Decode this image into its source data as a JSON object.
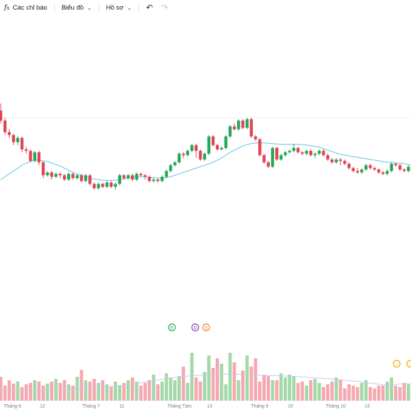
{
  "toolbar": {
    "indicators_label": "Các chỉ báo",
    "chart_label": "Biểu đồ",
    "profile_label": "Hồ sơ",
    "undo_icon": "undo-icon",
    "redo_icon": "redo-icon"
  },
  "colors": {
    "up": "#26a65b",
    "down": "#e04554",
    "ma": "#5ec1e0",
    "vol_up": "#a4d8a8",
    "vol_down": "#f5a8b0",
    "vol_ma": "#c5c8ea"
  },
  "chart_data": {
    "type": "candlestick",
    "x_ticks": [
      "Tháng 6",
      "12",
      "Tháng 7",
      "11",
      "Tháng Tám",
      "13",
      "Tháng 9",
      "15",
      "Tháng 10",
      "13"
    ],
    "ylim": [
      0,
      100
    ],
    "reference_line": 81,
    "events": [
      {
        "label": "E",
        "color": "#26a65b"
      },
      {
        "label": "D",
        "color": "#8e44ad"
      },
      {
        "label": "S",
        "color": "#f08030"
      }
    ],
    "candles": [
      [
        86,
        79,
        91,
        77
      ],
      [
        79,
        71,
        81,
        69
      ],
      [
        71,
        69,
        73,
        67
      ],
      [
        69,
        64,
        70,
        62
      ],
      [
        64,
        67,
        68,
        62
      ],
      [
        67,
        59,
        68,
        57
      ],
      [
        59,
        58,
        61,
        56
      ],
      [
        58,
        51,
        59,
        50
      ],
      [
        51,
        57,
        58,
        50
      ],
      [
        57,
        50,
        58,
        48
      ],
      [
        50,
        41,
        51,
        39
      ],
      [
        41,
        43,
        44,
        40
      ],
      [
        43,
        40,
        44,
        38
      ],
      [
        40,
        42,
        43,
        39
      ],
      [
        42,
        41,
        43,
        39
      ],
      [
        41,
        38,
        42,
        37
      ],
      [
        38,
        42,
        43,
        37
      ],
      [
        42,
        39,
        43,
        38
      ],
      [
        39,
        41,
        42,
        38
      ],
      [
        41,
        37,
        42,
        36
      ],
      [
        37,
        41,
        42,
        36
      ],
      [
        41,
        35,
        42,
        34
      ],
      [
        35,
        32,
        36,
        31
      ],
      [
        32,
        35,
        36,
        31
      ],
      [
        35,
        33,
        36,
        32
      ],
      [
        33,
        36,
        37,
        32
      ],
      [
        36,
        33,
        37,
        32
      ],
      [
        33,
        35,
        36,
        31
      ],
      [
        35,
        41,
        42,
        34
      ],
      [
        41,
        39,
        42,
        38
      ],
      [
        39,
        41,
        42,
        38
      ],
      [
        41,
        38,
        42,
        37
      ],
      [
        38,
        42,
        43,
        37
      ],
      [
        42,
        41,
        43,
        40
      ],
      [
        41,
        40,
        42,
        38
      ],
      [
        40,
        37,
        41,
        36
      ],
      [
        37,
        38,
        39,
        36
      ],
      [
        38,
        37,
        39,
        36
      ],
      [
        37,
        40,
        41,
        36
      ],
      [
        40,
        44,
        45,
        39
      ],
      [
        44,
        48,
        49,
        43
      ],
      [
        48,
        50,
        51,
        47
      ],
      [
        50,
        56,
        57,
        49
      ],
      [
        56,
        55,
        57,
        53
      ],
      [
        55,
        58,
        59,
        54
      ],
      [
        58,
        62,
        63,
        57
      ],
      [
        62,
        58,
        63,
        53
      ],
      [
        58,
        52,
        59,
        51
      ],
      [
        52,
        56,
        57,
        51
      ],
      [
        56,
        68,
        69,
        55
      ],
      [
        68,
        62,
        69,
        61
      ],
      [
        62,
        59,
        63,
        58
      ],
      [
        59,
        60,
        61,
        58
      ],
      [
        60,
        68,
        69,
        59
      ],
      [
        68,
        75,
        76,
        67
      ],
      [
        75,
        73,
        77,
        72
      ],
      [
        73,
        79,
        80,
        72
      ],
      [
        79,
        74,
        80,
        73
      ],
      [
        74,
        80,
        81,
        73
      ],
      [
        80,
        68,
        81,
        67
      ],
      [
        68,
        66,
        69,
        65
      ],
      [
        66,
        55,
        67,
        54
      ],
      [
        55,
        50,
        56,
        49
      ],
      [
        50,
        47,
        51,
        46
      ],
      [
        47,
        60,
        61,
        46
      ],
      [
        60,
        52,
        61,
        51
      ],
      [
        52,
        55,
        56,
        51
      ],
      [
        55,
        57,
        58,
        54
      ],
      [
        57,
        58,
        59,
        56
      ],
      [
        58,
        60,
        63,
        57
      ],
      [
        60,
        57,
        61,
        56
      ],
      [
        57,
        56,
        58,
        55
      ],
      [
        56,
        58,
        59,
        55
      ],
      [
        58,
        55,
        59,
        54
      ],
      [
        55,
        56,
        57,
        53
      ],
      [
        56,
        58,
        59,
        55
      ],
      [
        58,
        55,
        59,
        54
      ],
      [
        55,
        52,
        56,
        51
      ],
      [
        52,
        50,
        53,
        49
      ],
      [
        50,
        52,
        53,
        49
      ],
      [
        52,
        51,
        53,
        48
      ],
      [
        51,
        49,
        52,
        48
      ],
      [
        49,
        46,
        50,
        45
      ],
      [
        46,
        44,
        47,
        43
      ],
      [
        44,
        43,
        46,
        42
      ],
      [
        43,
        45,
        46,
        42
      ],
      [
        45,
        48,
        49,
        44
      ],
      [
        48,
        46,
        49,
        45
      ],
      [
        46,
        45,
        47,
        44
      ],
      [
        45,
        43,
        46,
        42
      ],
      [
        43,
        42,
        44,
        41
      ],
      [
        42,
        44,
        45,
        41
      ],
      [
        44,
        49,
        50,
        43
      ],
      [
        49,
        48,
        50,
        47
      ],
      [
        48,
        45,
        49,
        44
      ],
      [
        45,
        44,
        46,
        43
      ],
      [
        44,
        47,
        48,
        43
      ],
      [
        47,
        46,
        48,
        45
      ],
      [
        46,
        49,
        50,
        45
      ],
      [
        49,
        51,
        52,
        48
      ],
      [
        51,
        48,
        52,
        47
      ],
      [
        48,
        46,
        49,
        45
      ],
      [
        46,
        43,
        47,
        40
      ],
      [
        43,
        46,
        47,
        40
      ],
      [
        46,
        55,
        56,
        45
      ],
      [
        55,
        52,
        56,
        51
      ],
      [
        52,
        60,
        61,
        51
      ],
      [
        60,
        63,
        64,
        59
      ],
      [
        63,
        68,
        72,
        62
      ]
    ],
    "ma20": [
      38,
      40,
      42,
      44,
      46,
      48,
      49.5,
      50.5,
      51.5,
      51.5,
      51,
      50.5,
      49.5,
      48.5,
      47.5,
      46,
      44.5,
      43,
      42,
      41,
      40,
      39,
      38.5,
      38,
      37.5,
      37.5,
      37.5,
      37.5,
      38,
      38.5,
      39,
      39.5,
      40,
      40,
      40,
      39.5,
      39.5,
      39,
      39,
      39.5,
      40,
      41,
      42,
      43,
      44,
      45,
      46,
      47,
      48,
      49,
      50,
      51.5,
      53,
      55,
      57,
      58.5,
      60,
      61.5,
      62.5,
      63,
      63.5,
      63.5,
      63.5,
      63.3,
      63,
      62.8,
      62.6,
      62.5,
      62.5,
      62.5,
      62.5,
      62.3,
      62,
      61.5,
      61,
      60.5,
      59.5,
      58.5,
      57.5,
      56.5,
      55.5,
      55,
      54.5,
      54,
      53.5,
      53,
      52.5,
      52,
      51.5,
      51,
      50.5,
      50,
      50,
      49.5,
      49.5,
      49,
      48.5,
      48.5,
      48,
      48,
      48,
      48,
      48,
      48.5,
      49,
      50,
      51,
      52,
      53
    ],
    "volume_up": [
      2,
      4,
      6,
      8,
      10,
      12,
      14,
      16,
      18,
      20
    ],
    "volume_max": 100
  }
}
